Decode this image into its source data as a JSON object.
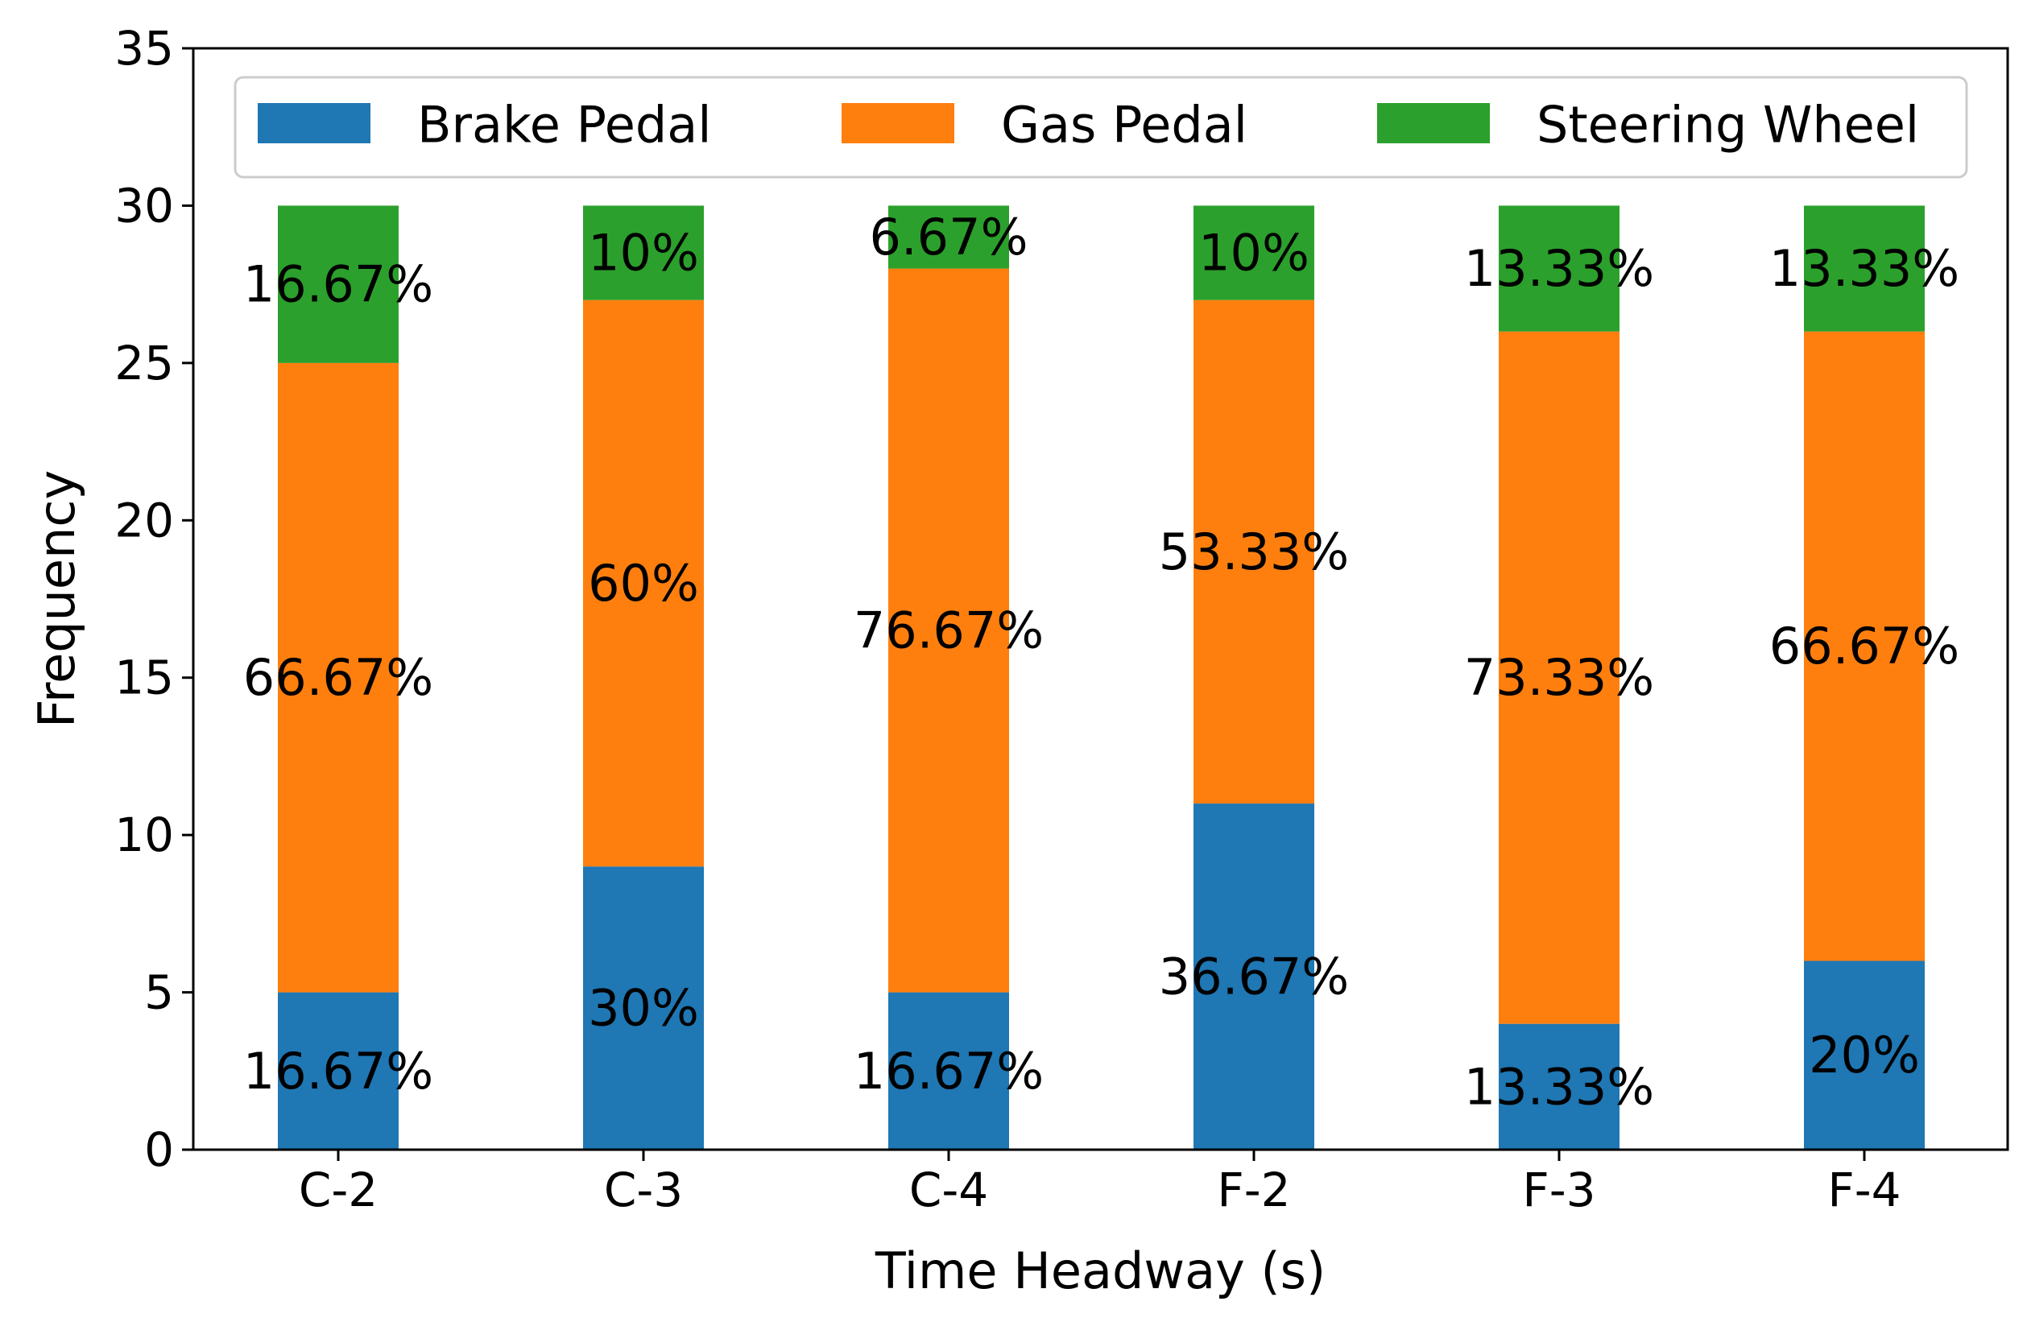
{
  "chart_data": {
    "type": "bar",
    "stacked": true,
    "title": "",
    "xlabel": "Time Headway (s)",
    "ylabel": "Frequency",
    "ylim": [
      0,
      35
    ],
    "yticks": [
      "0",
      "5",
      "10",
      "15",
      "20",
      "25",
      "30",
      "35"
    ],
    "categories": [
      "C-2",
      "C-3",
      "C-4",
      "F-2",
      "F-3",
      "F-4"
    ],
    "legend_position": "top",
    "grid": false,
    "series": [
      {
        "name": "Brake Pedal",
        "color": "#1f77b4",
        "values": [
          5,
          9,
          5,
          11,
          4,
          6
        ],
        "labels": [
          "16.67%",
          "30%",
          "16.67%",
          "36.67%",
          "13.33%",
          "20%"
        ]
      },
      {
        "name": "Gas Pedal",
        "color": "#ff7f0e",
        "values": [
          20,
          18,
          23,
          16,
          22,
          20
        ],
        "labels": [
          "66.67%",
          "60%",
          "76.67%",
          "53.33%",
          "73.33%",
          "66.67%"
        ]
      },
      {
        "name": "Steering Wheel",
        "color": "#2ca02c",
        "values": [
          5,
          3,
          2,
          3,
          4,
          4
        ],
        "labels": [
          "16.67%",
          "10%",
          "6.67%",
          "10%",
          "13.33%",
          "13.33%"
        ]
      }
    ]
  }
}
